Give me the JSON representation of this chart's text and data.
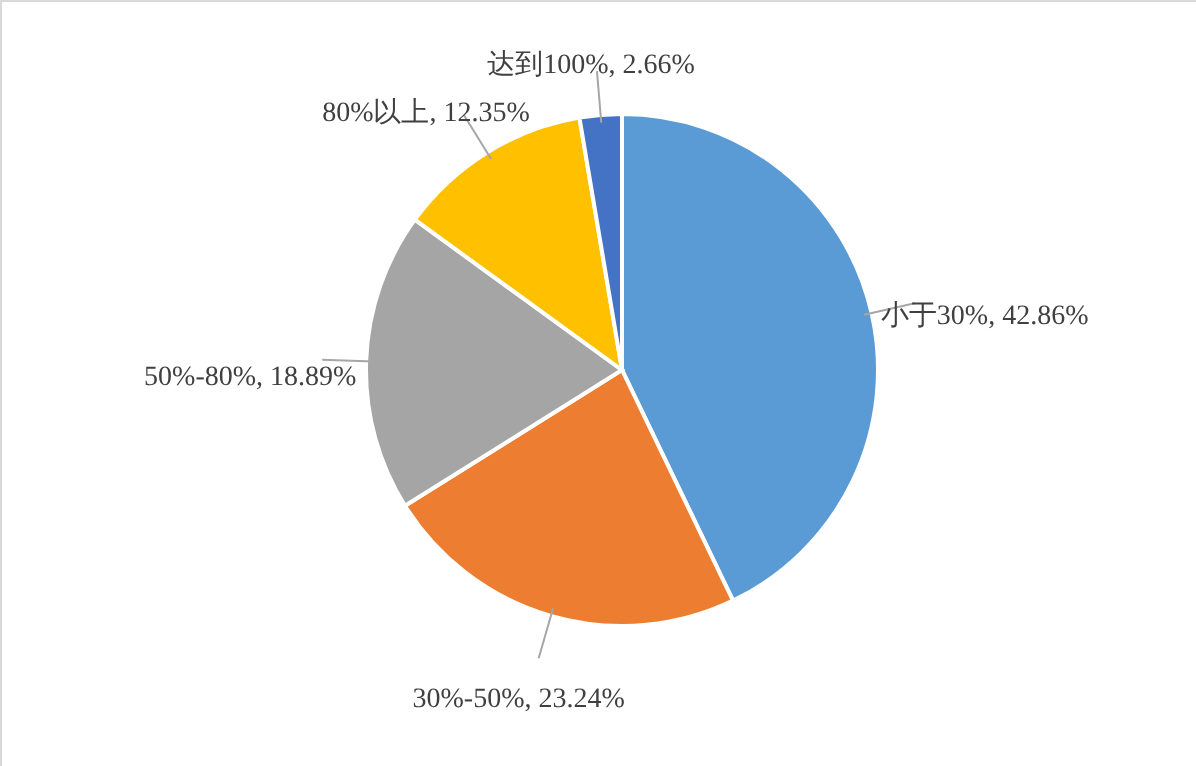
{
  "chart_data": {
    "type": "pie",
    "categories": [
      "小于30%",
      "30%-50%",
      "50%-80%",
      "80%以上",
      "达到100%"
    ],
    "values": [
      42.86,
      23.24,
      18.89,
      12.35,
      2.66
    ],
    "value_labels": [
      "42.86%",
      "23.24%",
      "18.89%",
      "12.35%",
      "2.66%"
    ],
    "colors": [
      "#5b9bd5",
      "#ed7d31",
      "#a5a5a5",
      "#ffc000",
      "#4472c4"
    ]
  }
}
